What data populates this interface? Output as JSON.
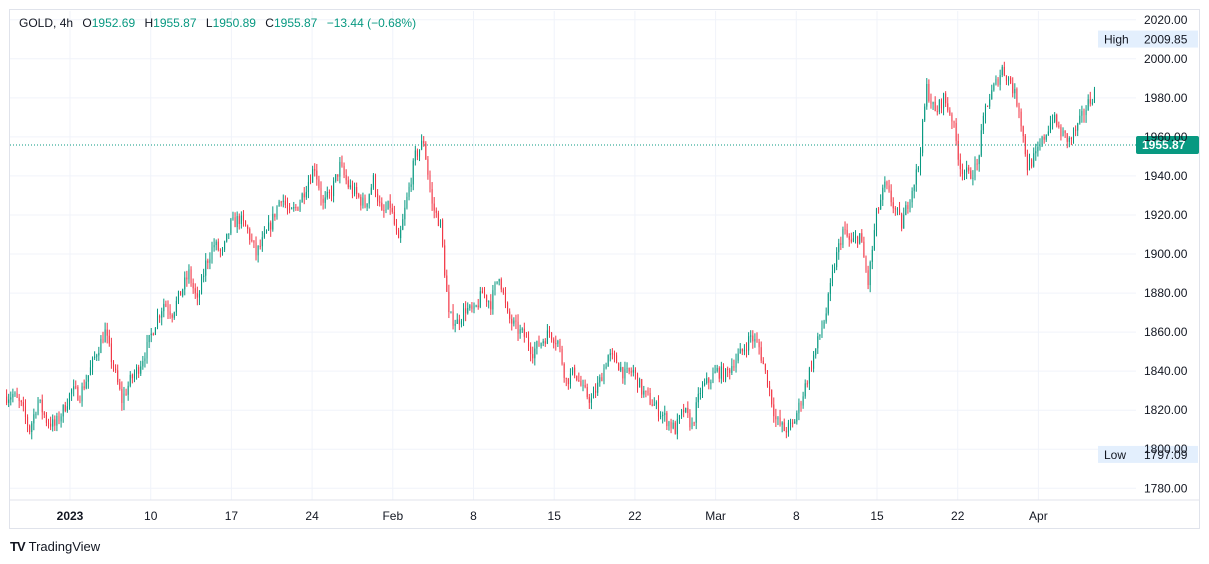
{
  "header": {
    "symbol": "GOLD",
    "interval": "4h",
    "o_key": "O",
    "o_val": "1952.69",
    "h_key": "H",
    "h_val": "1955.87",
    "l_key": "L",
    "l_val": "1950.89",
    "c_key": "C",
    "c_val": "1955.87",
    "change": "−13.44 (−0.68%)"
  },
  "footer": {
    "brand": "TradingView",
    "logo": "TV"
  },
  "colors": {
    "up": "#089981",
    "down": "#f23645",
    "grid": "#f0f3fa",
    "axis_text": "#131722",
    "badge_bg": "#e3effd"
  },
  "chart_data": {
    "type": "candlestick",
    "ylim": [
      1774,
      2025
    ],
    "y_ticks": [
      1780,
      1800,
      1820,
      1840,
      1860,
      1880,
      1900,
      1920,
      1940,
      1960,
      1980,
      2000,
      2020
    ],
    "y_tick_labels": [
      "1780.00",
      "1800.00",
      "1820.00",
      "1840.00",
      "1860.00",
      "1880.00",
      "1900.00",
      "1920.00",
      "1940.00",
      "1960.00",
      "1980.00",
      "2000.00",
      "2020.00"
    ],
    "x_ticks": [
      "2023",
      "10",
      "17",
      "24",
      "Feb",
      "8",
      "15",
      "22",
      "Mar",
      "8",
      "15",
      "22",
      "Apr"
    ],
    "x_tick_bold": [
      "2023"
    ],
    "high": {
      "label": "High",
      "value": 2009.85,
      "text": "2009.85"
    },
    "low": {
      "label": "Low",
      "value": 1797.09,
      "text": "1797.09"
    },
    "last": {
      "value": 1955.87,
      "text": "1955.87"
    },
    "anchors": [
      1827,
      1828,
      1822,
      1810,
      1825,
      1815,
      1812,
      1820,
      1830,
      1828,
      1838,
      1850,
      1860,
      1842,
      1825,
      1835,
      1842,
      1852,
      1865,
      1875,
      1870,
      1880,
      1890,
      1875,
      1895,
      1905,
      1900,
      1915,
      1918,
      1912,
      1900,
      1908,
      1918,
      1930,
      1920,
      1925,
      1935,
      1945,
      1925,
      1932,
      1945,
      1935,
      1930,
      1925,
      1938,
      1920,
      1925,
      1905,
      1928,
      1950,
      1958,
      1925,
      1915,
      1868,
      1865,
      1872,
      1870,
      1880,
      1875,
      1890,
      1868,
      1862,
      1858,
      1850,
      1855,
      1860,
      1855,
      1835,
      1840,
      1830,
      1825,
      1835,
      1848,
      1845,
      1838,
      1840,
      1830,
      1825,
      1820,
      1815,
      1810,
      1820,
      1812,
      1830,
      1835,
      1840,
      1838,
      1845,
      1850,
      1858,
      1852,
      1835,
      1815,
      1810,
      1812,
      1825,
      1840,
      1855,
      1870,
      1895,
      1912,
      1905,
      1910,
      1885,
      1920,
      1935,
      1925,
      1915,
      1930,
      1945,
      1985,
      1972,
      1980,
      1970,
      1945,
      1940,
      1945,
      1975,
      1985,
      1995,
      1988,
      1975,
      1945,
      1950,
      1960,
      1970,
      1962,
      1958,
      1965,
      1975,
      1983,
      1978,
      1970
    ],
    "candles_per_day": 6,
    "first_tick_day": 5,
    "tick_days": [
      5,
      12,
      19,
      26,
      33,
      40,
      47,
      54,
      61,
      68,
      75,
      82,
      89
    ]
  }
}
